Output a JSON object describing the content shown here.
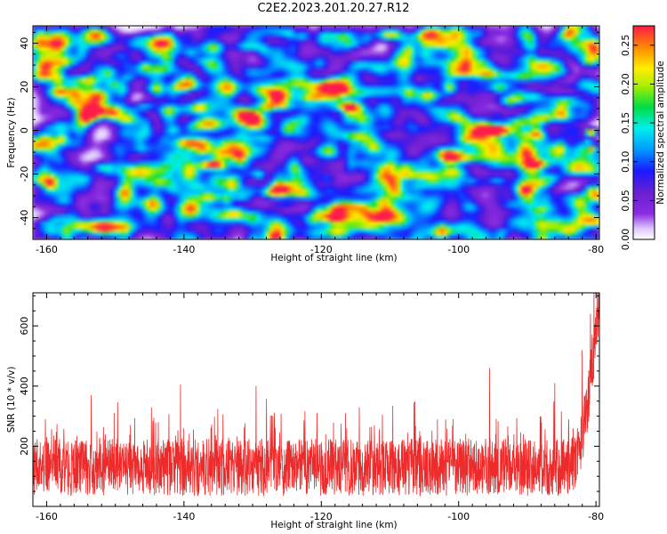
{
  "figure": {
    "title": "C2E2.2023.201.20.27.R12"
  },
  "chart_data": [
    {
      "type": "heatmap",
      "xlabel": "Height of straight line (km)",
      "ylabel": "Frequency (Hz)",
      "xlim": [
        -162,
        -79.5
      ],
      "ylim": [
        -50,
        48
      ],
      "xticks": [
        -160,
        -140,
        -120,
        -100,
        -80
      ],
      "yticks": [
        -40,
        -20,
        0,
        20,
        40
      ],
      "colorbar": {
        "label": "Normalized spectral amplitude",
        "range": [
          0,
          0.275
        ],
        "ticks": [
          "0.00",
          "0.05",
          "0.10",
          "0.15",
          "0.20",
          "0.25"
        ],
        "colormap": "rainbow (white → violet → blue → cyan → green → yellow → orange → red)"
      },
      "background_level": 0.02,
      "hotspots": [
        {
          "x": -81,
          "y": 0,
          "value": 0.27
        },
        {
          "x": -81,
          "y": -8,
          "value": 0.26
        },
        {
          "x": -81.5,
          "y": -4,
          "value": 0.16
        },
        {
          "x": -86,
          "y": -7,
          "value": 0.12
        },
        {
          "x": -101,
          "y": -7,
          "value": 0.09
        },
        {
          "x": -106,
          "y": 40,
          "value": 0.08
        },
        {
          "x": -155,
          "y": -49,
          "value": 0.13
        }
      ]
    },
    {
      "type": "line",
      "xlabel": "Height of straight line (km)",
      "ylabel": "SNR (10 * v/v)",
      "xlim": [
        -162,
        -79.5
      ],
      "ylim": [
        0,
        710
      ],
      "xticks": [
        -160,
        -140,
        -120,
        -100,
        -80
      ],
      "yticks": [
        200,
        400,
        600
      ],
      "series": [
        {
          "color": "#ee2a2a",
          "baseline_mean": 130,
          "noise_range": [
            30,
            330
          ],
          "peaks": [
            {
              "x": -140.5,
              "y": 405
            },
            {
              "x": -153.5,
              "y": 370
            },
            {
              "x": -129.5,
              "y": 400
            },
            {
              "x": -106.5,
              "y": 345
            },
            {
              "x": -95.5,
              "y": 460
            },
            {
              "x": -86,
              "y": 410
            },
            {
              "x": -82,
              "y": 520
            },
            {
              "x": -80.8,
              "y": 640
            },
            {
              "x": -80.3,
              "y": 710
            }
          ]
        }
      ]
    }
  ]
}
